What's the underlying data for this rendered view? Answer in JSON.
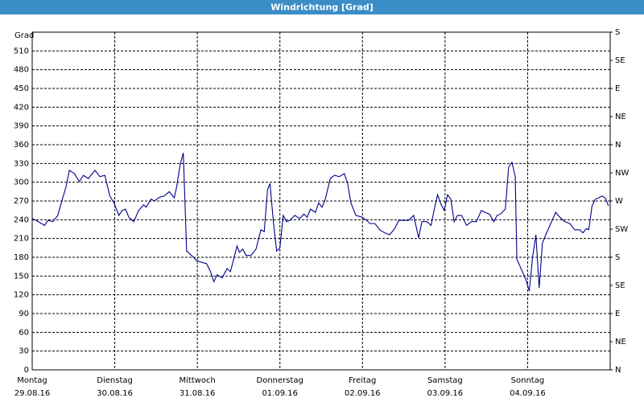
{
  "chart_data": {
    "type": "line",
    "title": "Windrichtung [Grad]",
    "y_label": "Grad",
    "xlim": [
      0,
      7
    ],
    "xticks": [
      {
        "value": 0,
        "label": "Montag",
        "date": "29.08.16"
      },
      {
        "value": 1,
        "label": "Dienstag",
        "date": "30.08.16"
      },
      {
        "value": 2,
        "label": "Mittwoch",
        "date": "31.08.16"
      },
      {
        "value": 3,
        "label": "Donnerstag",
        "date": "01.09.16"
      },
      {
        "value": 4,
        "label": "Freitag",
        "date": "02.09.16"
      },
      {
        "value": 5,
        "label": "Samstag",
        "date": "03.09.16"
      },
      {
        "value": 6,
        "label": "Sonntag",
        "date": "04.09.16"
      }
    ],
    "ylim": [
      0,
      540
    ],
    "yticks": [
      0,
      30,
      60,
      90,
      120,
      150,
      180,
      210,
      240,
      270,
      300,
      330,
      360,
      390,
      420,
      450,
      480,
      510
    ],
    "y2lim": [
      0,
      540
    ],
    "y2ticks": [
      {
        "value": 0,
        "label": "N"
      },
      {
        "value": 45,
        "label": "NE"
      },
      {
        "value": 90,
        "label": "E"
      },
      {
        "value": 135,
        "label": "SE"
      },
      {
        "value": 180,
        "label": "S"
      },
      {
        "value": 225,
        "label": "SW"
      },
      {
        "value": 270,
        "label": "W"
      },
      {
        "value": 315,
        "label": "NW"
      },
      {
        "value": 360,
        "label": "N"
      },
      {
        "value": 405,
        "label": "NE"
      },
      {
        "value": 450,
        "label": "E"
      },
      {
        "value": 495,
        "label": "SE"
      },
      {
        "value": 540,
        "label": "S"
      }
    ],
    "grid": true,
    "x": [
      0.0,
      0.06,
      0.15,
      0.19,
      0.25,
      0.31,
      0.37,
      0.41,
      0.45,
      0.51,
      0.57,
      0.62,
      0.68,
      0.76,
      0.82,
      0.88,
      0.94,
      0.99,
      1.05,
      1.09,
      1.13,
      1.17,
      1.23,
      1.29,
      1.35,
      1.38,
      1.44,
      1.48,
      1.54,
      1.6,
      1.66,
      1.72,
      1.75,
      1.79,
      1.83,
      1.87,
      1.93,
      1.99,
      2.05,
      2.11,
      2.16,
      2.2,
      2.24,
      2.3,
      2.36,
      2.4,
      2.44,
      2.48,
      2.51,
      2.55,
      2.59,
      2.65,
      2.71,
      2.77,
      2.81,
      2.85,
      2.88,
      2.92,
      2.96,
      3.0,
      3.04,
      3.08,
      3.12,
      3.18,
      3.24,
      3.29,
      3.33,
      3.37,
      3.43,
      3.47,
      3.51,
      3.55,
      3.61,
      3.66,
      3.72,
      3.78,
      3.82,
      3.86,
      3.92,
      4.0,
      4.05,
      4.09,
      4.15,
      4.21,
      4.27,
      4.33,
      4.39,
      4.44,
      4.5,
      4.56,
      4.62,
      4.68,
      4.72,
      4.78,
      4.83,
      4.87,
      4.91,
      4.95,
      4.99,
      5.03,
      5.07,
      5.11,
      5.15,
      5.2,
      5.26,
      5.32,
      5.38,
      5.44,
      5.48,
      5.54,
      5.59,
      5.63,
      5.67,
      5.73,
      5.77,
      5.81,
      5.85,
      5.87,
      5.93,
      5.98,
      6.02,
      6.06,
      6.1,
      6.14,
      6.18,
      6.22,
      6.28,
      6.34,
      6.39,
      6.45,
      6.51,
      6.57,
      6.63,
      6.67,
      6.71,
      6.74,
      6.78,
      6.82,
      6.86,
      6.9,
      6.94,
      6.98
    ],
    "series": [
      {
        "name": "Windrichtung",
        "color": "#00008b",
        "values": [
          242,
          238,
          231,
          239,
          237,
          247,
          275,
          293,
          319,
          314,
          301,
          311,
          306,
          319,
          309,
          311,
          278,
          267,
          247,
          255,
          257,
          244,
          237,
          255,
          264,
          260,
          273,
          270,
          276,
          278,
          285,
          275,
          293,
          327,
          347,
          190,
          183,
          175,
          172,
          170,
          157,
          141,
          152,
          147,
          162,
          157,
          177,
          198,
          188,
          193,
          183,
          183,
          193,
          224,
          221,
          288,
          298,
          238,
          190,
          195,
          247,
          237,
          239,
          247,
          242,
          249,
          244,
          257,
          252,
          267,
          260,
          273,
          306,
          311,
          309,
          314,
          298,
          267,
          247,
          244,
          239,
          234,
          234,
          224,
          219,
          216,
          226,
          239,
          239,
          239,
          247,
          211,
          237,
          237,
          231,
          257,
          280,
          265,
          255,
          280,
          273,
          237,
          247,
          247,
          231,
          237,
          237,
          255,
          252,
          249,
          237,
          247,
          249,
          257,
          324,
          332,
          309,
          177,
          159,
          144,
          126,
          180,
          216,
          131,
          203,
          216,
          234,
          252,
          244,
          237,
          234,
          224,
          224,
          219,
          226,
          224,
          262,
          273,
          275,
          278,
          275,
          262
        ]
      }
    ]
  }
}
